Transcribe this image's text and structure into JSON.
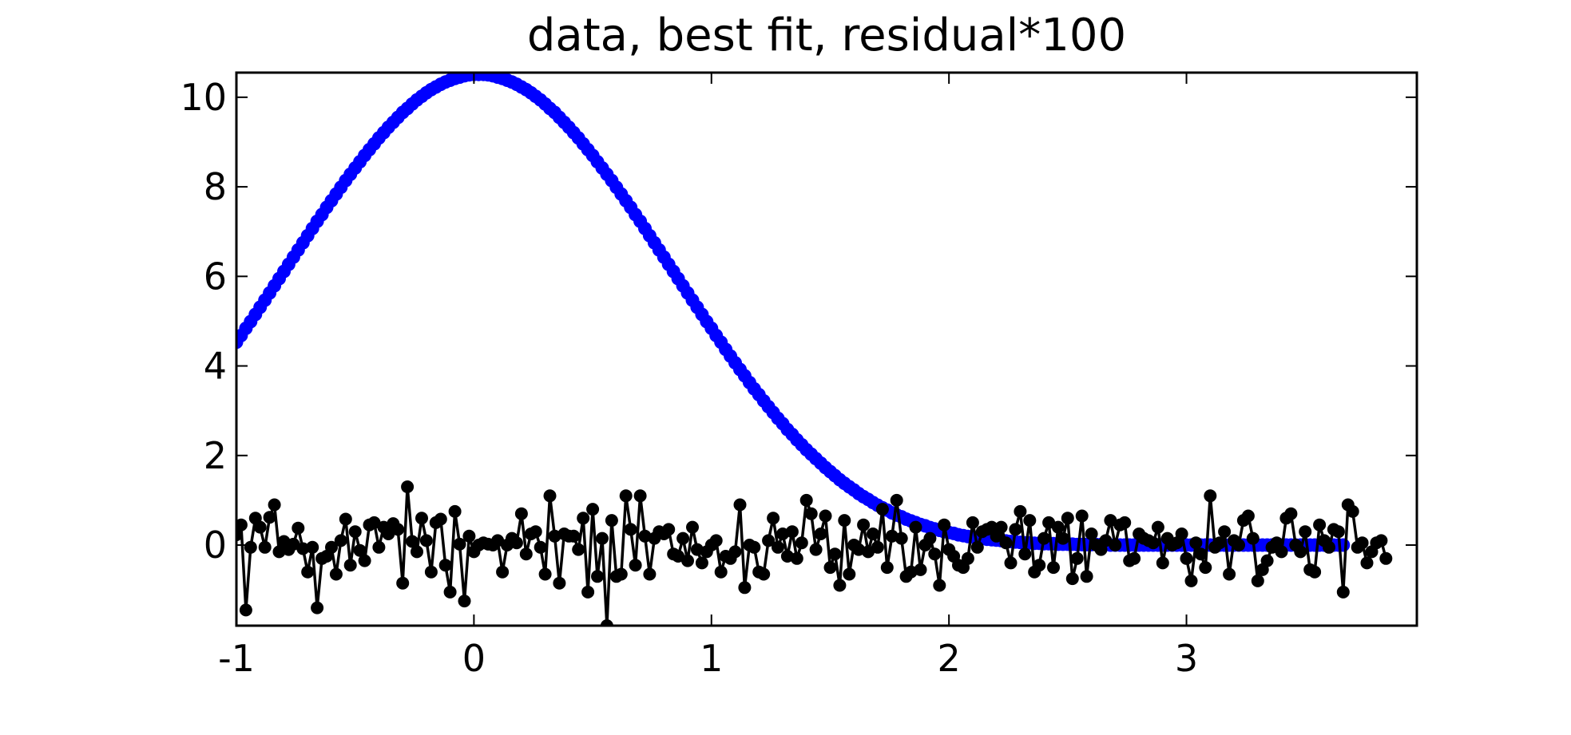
{
  "chart_data": {
    "type": "line",
    "title": "data, best fit, residual*100",
    "xlabel": "",
    "ylabel": "",
    "xlim": [
      -1,
      3.97
    ],
    "ylim": [
      -1.8,
      10.55
    ],
    "x_ticks": [
      -1,
      0,
      1,
      2,
      3
    ],
    "x_tick_labels": [
      "-1",
      "0",
      "1",
      "2",
      "3"
    ],
    "y_ticks": [
      0,
      2,
      4,
      6,
      8,
      10
    ],
    "y_tick_labels": [
      "0",
      "2",
      "4",
      "6",
      "8",
      "10"
    ],
    "grid": false,
    "legend": "none",
    "series": [
      {
        "color": "#0000ff",
        "style": "line with dense circle markers",
        "x_start": -1.0,
        "x_step": 0.02,
        "values": [
          4.53,
          4.68,
          4.84,
          4.99,
          5.15,
          5.31,
          5.47,
          5.63,
          5.79,
          5.95,
          6.11,
          6.27,
          6.43,
          6.59,
          6.75,
          6.91,
          7.07,
          7.23,
          7.38,
          7.54,
          7.69,
          7.84,
          7.99,
          8.14,
          8.28,
          8.42,
          8.56,
          8.7,
          8.83,
          8.96,
          9.09,
          9.21,
          9.33,
          9.44,
          9.55,
          9.66,
          9.75,
          9.85,
          9.94,
          10.02,
          10.1,
          10.17,
          10.23,
          10.29,
          10.34,
          10.38,
          10.42,
          10.45,
          10.48,
          10.5,
          10.51,
          10.51,
          10.51,
          10.5,
          10.48,
          10.45,
          10.42,
          10.38,
          10.34,
          10.29,
          10.23,
          10.17,
          10.1,
          10.02,
          9.94,
          9.85,
          9.75,
          9.66,
          9.55,
          9.44,
          9.33,
          9.21,
          9.09,
          8.96,
          8.83,
          8.7,
          8.56,
          8.42,
          8.28,
          8.14,
          7.99,
          7.84,
          7.69,
          7.54,
          7.38,
          7.23,
          7.07,
          6.91,
          6.75,
          6.59,
          6.43,
          6.27,
          6.11,
          5.95,
          5.79,
          5.63,
          5.47,
          5.31,
          5.15,
          4.99,
          4.84,
          4.68,
          4.53,
          4.37,
          4.22,
          4.07,
          3.92,
          3.78,
          3.63,
          3.49,
          3.36,
          3.22,
          3.09,
          2.96,
          2.83,
          2.71,
          2.58,
          2.47,
          2.35,
          2.24,
          2.13,
          2.03,
          1.93,
          1.83,
          1.73,
          1.64,
          1.55,
          1.46,
          1.38,
          1.3,
          1.23,
          1.15,
          1.08,
          1.02,
          0.95,
          0.89,
          0.83,
          0.78,
          0.72,
          0.67,
          0.63,
          0.58,
          0.54,
          0.5,
          0.46,
          0.43,
          0.39,
          0.36,
          0.33,
          0.3,
          0.28,
          0.26,
          0.23,
          0.21,
          0.19,
          0.18,
          0.16,
          0.15,
          0.13,
          0.12,
          0.11,
          0.1,
          0.09,
          0.08,
          0.07,
          0.06,
          0.05,
          0.05,
          0.04,
          0.04,
          0.03,
          0.03,
          0.03,
          0.02,
          0.02,
          0.02,
          0.02,
          0.01,
          0.01,
          0.01,
          0.01,
          0.01,
          0.01,
          0.01,
          0.0,
          0.0,
          0.0,
          0.0,
          0.0,
          0.0,
          0.0,
          0.0,
          0.0,
          0.0,
          0.0,
          0.0,
          0.0,
          0.0,
          0.0,
          0.0,
          0.0,
          0.0,
          0.0,
          0.0,
          0.0,
          0.0,
          0.0,
          0.0,
          0.0,
          0.0,
          0.0,
          0.0,
          0.0,
          0.0,
          0.0,
          0.0,
          0.0,
          0.0,
          0.0,
          0.0,
          0.0,
          0.0,
          0.0,
          0.0,
          0.0,
          0.0,
          0.0,
          0.0,
          0.0,
          0.0,
          0.0,
          0.0,
          0.0,
          0.0
        ]
      },
      {
        "color": "#000000",
        "style": "line with circle markers",
        "x_start": -1.0,
        "x_step": 0.02,
        "values": [
          0.23,
          0.45,
          -1.45,
          -0.05,
          0.6,
          0.4,
          -0.05,
          0.62,
          0.9,
          -0.15,
          0.08,
          -0.1,
          0.02,
          0.38,
          -0.08,
          -0.6,
          -0.05,
          -1.4,
          -0.3,
          -0.25,
          -0.05,
          -0.65,
          0.1,
          0.58,
          -0.45,
          0.3,
          -0.12,
          -0.35,
          0.45,
          0.5,
          -0.05,
          0.4,
          0.25,
          0.48,
          0.35,
          -0.85,
          1.3,
          0.08,
          -0.15,
          0.6,
          0.1,
          -0.6,
          0.5,
          0.58,
          -0.45,
          -1.05,
          0.75,
          0.02,
          -1.25,
          0.2,
          -0.15,
          0.0,
          0.05,
          0.02,
          0.0,
          0.1,
          -0.6,
          0.0,
          0.15,
          0.05,
          0.7,
          -0.2,
          0.25,
          0.3,
          -0.05,
          -0.65,
          1.1,
          0.2,
          -0.85,
          0.25,
          0.2,
          0.2,
          -0.1,
          0.6,
          -1.05,
          0.8,
          -0.7,
          0.15,
          -1.8,
          0.55,
          -0.7,
          -0.65,
          1.1,
          0.35,
          -0.45,
          1.1,
          0.2,
          -0.65,
          0.15,
          0.3,
          0.25,
          0.35,
          -0.2,
          -0.25,
          0.15,
          -0.35,
          0.4,
          -0.1,
          -0.4,
          -0.15,
          0.0,
          0.1,
          -0.6,
          -0.25,
          -0.3,
          -0.15,
          0.9,
          -0.95,
          0.0,
          -0.05,
          -0.6,
          -0.65,
          0.1,
          0.6,
          -0.05,
          0.25,
          -0.25,
          0.3,
          -0.3,
          0.05,
          1.0,
          0.7,
          -0.1,
          0.25,
          0.65,
          -0.5,
          -0.2,
          -0.9,
          0.55,
          -0.65,
          0.0,
          -0.1,
          0.45,
          -0.15,
          0.25,
          -0.05,
          0.8,
          -0.5,
          0.2,
          1.0,
          0.15,
          -0.7,
          -0.6,
          0.4,
          -0.55,
          0.0,
          0.15,
          -0.2,
          -0.9,
          0.45,
          -0.1,
          -0.25,
          -0.45,
          -0.5,
          -0.3,
          0.5,
          -0.05,
          0.3,
          0.35,
          0.4,
          0.2,
          0.4,
          0.05,
          -0.4,
          0.35,
          0.75,
          -0.2,
          0.55,
          -0.6,
          -0.45,
          0.15,
          0.5,
          -0.5,
          0.4,
          0.15,
          0.6,
          -0.75,
          -0.3,
          0.65,
          -0.7,
          0.25,
          0.0,
          -0.1,
          0.1,
          0.55,
          0.0,
          0.45,
          0.5,
          -0.35,
          -0.3,
          0.25,
          0.15,
          0.1,
          0.05,
          0.4,
          -0.4,
          0.15,
          0.0,
          0.05,
          0.25,
          -0.3,
          -0.8,
          0.05,
          -0.2,
          -0.5,
          1.1,
          -0.05,
          0.05,
          0.3,
          -0.65,
          0.1,
          0.0,
          0.55,
          0.65,
          0.15,
          -0.8,
          -0.55,
          -0.35,
          -0.05,
          0.05,
          -0.15,
          0.6,
          0.7,
          0.0,
          -0.15,
          0.3,
          -0.55,
          -0.6,
          0.45,
          0.1,
          -0.05,
          0.35,
          0.3,
          -1.05,
          0.9,
          0.75,
          -0.05,
          0.05,
          -0.4,
          -0.15,
          0.05,
          0.1,
          -0.3
        ]
      }
    ]
  }
}
